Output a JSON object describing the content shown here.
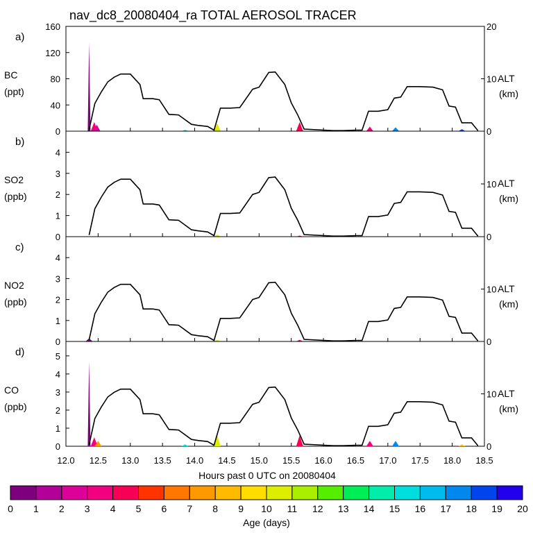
{
  "title": "nav_dc8_20080404_ra TOTAL AEROSOL TRACER",
  "xlabel": "Hours past 0 UTC on 20080404",
  "x_ticks": [
    "12.0",
    "12.5",
    "13.0",
    "13.5",
    "14.0",
    "14.5",
    "15.0",
    "15.5",
    "16.0",
    "16.5",
    "17.0",
    "17.5",
    "18.0",
    "18.5"
  ],
  "colorbar": {
    "label": "Age (days)",
    "ticks": [
      "0",
      "1",
      "2",
      "3",
      "4",
      "5",
      "6",
      "7",
      "8",
      "9",
      "10",
      "11",
      "12",
      "13",
      "14",
      "15",
      "16",
      "17",
      "18",
      "19",
      "20"
    ],
    "colors": [
      "#7f007f",
      "#b20099",
      "#dd0099",
      "#f20080",
      "#f70055",
      "#ff3300",
      "#ff7700",
      "#ff9900",
      "#ffbb00",
      "#ffdd00",
      "#ddee00",
      "#aaee00",
      "#55ee00",
      "#00ee55",
      "#00eeaa",
      "#00dddd",
      "#00bbee",
      "#0088ee",
      "#0044ee",
      "#2200ee"
    ]
  },
  "chart_data": [
    {
      "type": "area",
      "panel_label": "a)",
      "species": "BC",
      "unit": "(ppt)",
      "ylim": [
        0,
        160
      ],
      "y_ticks": [
        "0",
        "40",
        "80",
        "120",
        "160"
      ],
      "alt_label": "ALT",
      "alt_unit": "(km)",
      "alt_lim": [
        0,
        20
      ],
      "alt_ticks": [
        "0",
        "10",
        "20"
      ],
      "xlim": [
        12.0,
        18.5
      ],
      "spikes": [
        {
          "x": 12.36,
          "y": 135,
          "color": "#7f007f"
        },
        {
          "x": 12.44,
          "y": 14,
          "color": "#f20080"
        },
        {
          "x": 12.48,
          "y": 10,
          "color": "#dd0099"
        },
        {
          "x": 13.85,
          "y": 2,
          "color": "#00dddd"
        },
        {
          "x": 14.35,
          "y": 12,
          "color": "#ddee00"
        },
        {
          "x": 15.63,
          "y": 14,
          "color": "#f70055"
        },
        {
          "x": 16.72,
          "y": 7,
          "color": "#f20080"
        },
        {
          "x": 17.12,
          "y": 6,
          "color": "#0088ee"
        },
        {
          "x": 18.15,
          "y": 3,
          "color": "#0044ee"
        }
      ]
    },
    {
      "type": "area",
      "panel_label": "b)",
      "species": "SO2",
      "unit": "(ppb)",
      "ylim": [
        0,
        5
      ],
      "y_ticks": [
        "0",
        "1",
        "2",
        "3",
        "4"
      ],
      "alt_label": "ALT",
      "alt_unit": "(km)",
      "alt_lim": [
        0,
        20
      ],
      "alt_ticks": [
        "0",
        "10"
      ],
      "xlim": [
        12.0,
        18.5
      ],
      "spikes": [
        {
          "x": 14.35,
          "y": 0.1,
          "color": "#ddee00"
        },
        {
          "x": 15.63,
          "y": 0.05,
          "color": "#f70055"
        }
      ]
    },
    {
      "type": "area",
      "panel_label": "c)",
      "species": "NO2",
      "unit": "(ppb)",
      "ylim": [
        0,
        5
      ],
      "y_ticks": [
        "0",
        "1",
        "2",
        "3",
        "4"
      ],
      "alt_label": "ALT",
      "alt_unit": "(km)",
      "alt_lim": [
        0,
        20
      ],
      "alt_ticks": [
        "0",
        "10"
      ],
      "xlim": [
        12.0,
        18.5
      ],
      "spikes": [
        {
          "x": 12.36,
          "y": 0.15,
          "color": "#7f007f"
        },
        {
          "x": 14.35,
          "y": 0.08,
          "color": "#ddee00"
        },
        {
          "x": 15.63,
          "y": 0.08,
          "color": "#f70055"
        }
      ]
    },
    {
      "type": "area",
      "panel_label": "d)",
      "species": "CO",
      "unit": "(ppb)",
      "ylim": [
        0,
        5.8
      ],
      "y_ticks": [
        "0",
        "1",
        "2",
        "3",
        "4",
        "5"
      ],
      "alt_label": "ALT",
      "alt_unit": "(km)",
      "alt_lim": [
        0,
        20
      ],
      "alt_ticks": [
        "0",
        "10"
      ],
      "xlim": [
        12.0,
        18.5
      ],
      "spikes": [
        {
          "x": 12.36,
          "y": 4.7,
          "color": "#7f007f"
        },
        {
          "x": 12.44,
          "y": 0.5,
          "color": "#f20080"
        },
        {
          "x": 12.5,
          "y": 0.3,
          "color": "#ff9900"
        },
        {
          "x": 13.85,
          "y": 0.1,
          "color": "#00dddd"
        },
        {
          "x": 14.35,
          "y": 0.6,
          "color": "#ddee00"
        },
        {
          "x": 15.63,
          "y": 0.6,
          "color": "#f70055"
        },
        {
          "x": 16.72,
          "y": 0.3,
          "color": "#f20080"
        },
        {
          "x": 17.12,
          "y": 0.3,
          "color": "#0088ee"
        },
        {
          "x": 18.15,
          "y": 0.1,
          "color": "#ffbb00"
        }
      ]
    }
  ],
  "altitude_profile": {
    "hours": [
      12.36,
      12.45,
      12.55,
      12.65,
      12.75,
      12.85,
      13.0,
      13.15,
      13.2,
      13.35,
      13.45,
      13.6,
      13.75,
      13.95,
      14.05,
      14.2,
      14.3,
      14.4,
      14.55,
      14.7,
      14.9,
      15.0,
      15.15,
      15.25,
      15.4,
      15.5,
      15.6,
      15.7,
      16.15,
      16.3,
      16.5,
      16.6,
      16.7,
      16.85,
      17.0,
      17.1,
      17.2,
      17.3,
      17.5,
      17.7,
      17.85,
      17.95,
      18.05,
      18.15,
      18.3,
      18.4
    ],
    "km": [
      0.3,
      5.3,
      7.5,
      9.4,
      10.3,
      10.9,
      10.9,
      8.9,
      6.2,
      6.2,
      6.0,
      3.2,
      3.1,
      1.3,
      1.1,
      0.9,
      0.2,
      4.4,
      4.4,
      4.5,
      8.0,
      8.4,
      11.2,
      11.3,
      8.9,
      5.4,
      3.1,
      0.4,
      0.1,
      0.1,
      0.2,
      0.2,
      3.8,
      3.8,
      4.1,
      6.3,
      6.5,
      8.5,
      8.5,
      8.4,
      7.9,
      4.8,
      4.6,
      1.6,
      1.6,
      0.1
    ]
  }
}
